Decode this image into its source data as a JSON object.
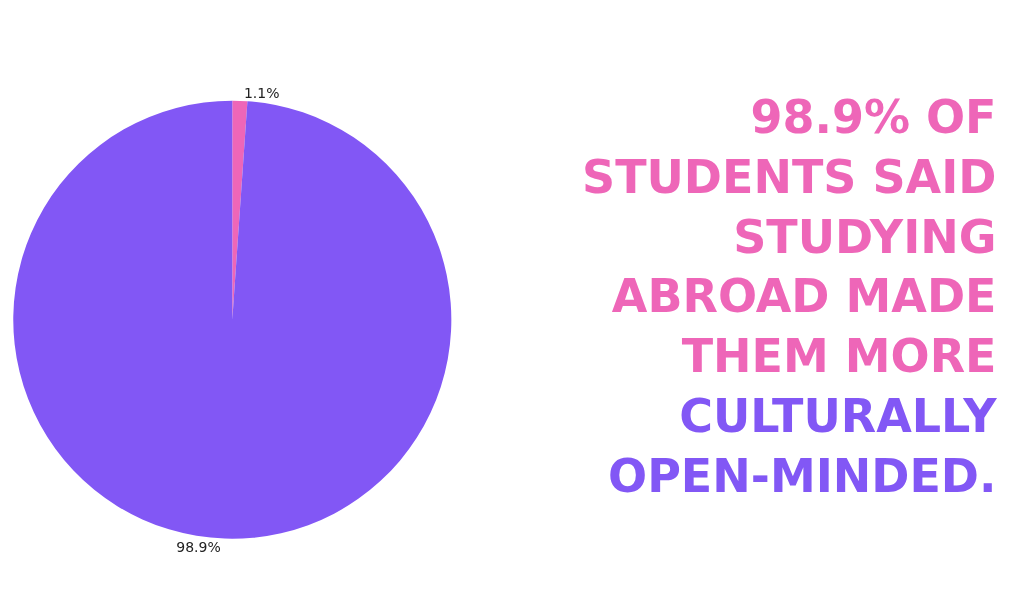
{
  "chart_data": {
    "type": "pie",
    "title": "98.9% OF\nSTUDENTS SAID\nSTUDYING\nABROAD MADE\nTHEM MORE",
    "subtitle": "CULTURALLY\nOPEN-MINDED.",
    "categories": [
      null,
      null
    ],
    "values": [
      1.1,
      98.9
    ],
    "colors": [
      "#ee66b8",
      "#8257f5"
    ],
    "value_labels": [
      "1.1%",
      "98.9%"
    ],
    "legend": false
  }
}
